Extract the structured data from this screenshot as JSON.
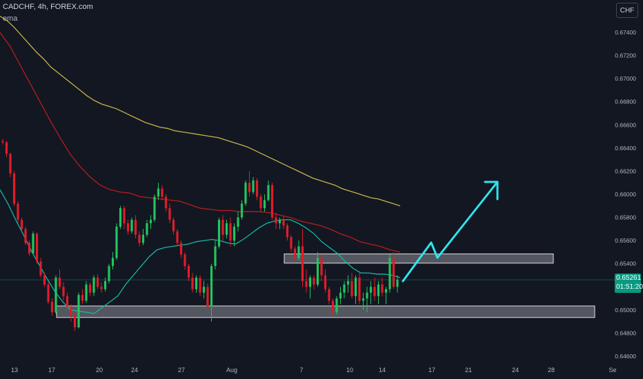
{
  "header": {
    "symbol": "CADCHF, 4h, FOREX.com",
    "indicator": "ema"
  },
  "currency_button": "CHF",
  "last_price": {
    "value": "0.65261",
    "countdown": "01:51:20"
  },
  "colors": {
    "background": "#131722",
    "bull": "#22c55e",
    "bear": "#e11d2a",
    "ema_fast": "#14b8a6",
    "ema_mid": "#b91c1c",
    "ema_slow": "#c9b44a",
    "projection": "#2ee6f0",
    "price_line": "#089981"
  },
  "chart_data": {
    "type": "candlestick",
    "y_axis_ticks": [
      "0.67400",
      "0.67200",
      "0.67000",
      "0.66800",
      "0.66600",
      "0.66400",
      "0.66200",
      "0.66000",
      "0.65800",
      "0.65600",
      "0.65400",
      "0.65000",
      "0.64800",
      "0.64600"
    ],
    "x_axis_ticks": [
      "13",
      "17",
      "20",
      "24",
      "27",
      "Aug",
      "7",
      "10",
      "14",
      "17",
      "21",
      "24",
      "28",
      "Se"
    ],
    "ylim": [
      0.6455,
      0.6755
    ],
    "last_price": 0.65261,
    "zones": [
      {
        "from_bar": 10,
        "to_end": true,
        "low": 0.64935,
        "high": 0.65035
      },
      {
        "from_bar": 80,
        "to_end": true,
        "low": 0.65405,
        "high": 0.65485
      }
    ],
    "ema_fast": [
      0.6604,
      0.6592,
      0.6578,
      0.6565,
      0.6551,
      0.6539,
      0.6527,
      0.6516,
      0.6507,
      0.65,
      0.6499,
      0.6498,
      0.6497,
      0.6502,
      0.6507,
      0.6512,
      0.6522,
      0.653,
      0.6538,
      0.6546,
      0.6552,
      0.6554,
      0.6555,
      0.6556,
      0.6557,
      0.6559,
      0.656,
      0.6561,
      0.656,
      0.6558,
      0.6557,
      0.6561,
      0.6566,
      0.6571,
      0.6575,
      0.6577,
      0.6578,
      0.6578,
      0.6575,
      0.6571,
      0.6566,
      0.6559,
      0.6554,
      0.6549,
      0.6542,
      0.6536,
      0.6532,
      0.6532,
      0.6531,
      0.6531,
      0.653,
      0.6528
    ],
    "ema_mid": [
      0.674,
      0.6728,
      0.6712,
      0.6696,
      0.668,
      0.6664,
      0.6649,
      0.6635,
      0.6624,
      0.6615,
      0.6608,
      0.6604,
      0.6602,
      0.6601,
      0.6598,
      0.6597,
      0.6596,
      0.6595,
      0.6594,
      0.6591,
      0.6588,
      0.6587,
      0.6586,
      0.6586,
      0.6585,
      0.6585,
      0.6585,
      0.6584,
      0.6582,
      0.658,
      0.6577,
      0.6575,
      0.6573,
      0.657,
      0.6566,
      0.6563,
      0.6559,
      0.6557,
      0.6555,
      0.6552,
      0.655
    ],
    "ema_slow": [
      0.6754,
      0.675,
      0.6744,
      0.6737,
      0.673,
      0.6723,
      0.6717,
      0.671,
      0.6705,
      0.67,
      0.6695,
      0.669,
      0.6685,
      0.6681,
      0.6678,
      0.6676,
      0.6674,
      0.6671,
      0.6668,
      0.6665,
      0.6662,
      0.666,
      0.6658,
      0.6657,
      0.6655,
      0.6654,
      0.6653,
      0.6652,
      0.6651,
      0.665,
      0.6649,
      0.6647,
      0.6645,
      0.6643,
      0.6641,
      0.6638,
      0.6635,
      0.6632,
      0.6629,
      0.6626,
      0.6623,
      0.662,
      0.6617,
      0.6614,
      0.6612,
      0.661,
      0.6608,
      0.6605,
      0.6603,
      0.6601,
      0.6599,
      0.6597,
      0.6596,
      0.6594,
      0.6592,
      0.659
    ],
    "candles": [
      [
        0.6646,
        0.6648,
        0.6643,
        0.6645
      ],
      [
        0.6645,
        0.6646,
        0.6632,
        0.6635
      ],
      [
        0.6635,
        0.6636,
        0.6615,
        0.6618
      ],
      [
        0.6618,
        0.662,
        0.659,
        0.6592
      ],
      [
        0.6592,
        0.6594,
        0.6575,
        0.6578
      ],
      [
        0.6578,
        0.658,
        0.6568,
        0.657
      ],
      [
        0.657,
        0.6572,
        0.6556,
        0.6558
      ],
      [
        0.6558,
        0.656,
        0.6547,
        0.6549
      ],
      [
        0.6549,
        0.6568,
        0.6548,
        0.6566
      ],
      [
        0.6566,
        0.6567,
        0.654,
        0.6542
      ],
      [
        0.6542,
        0.6545,
        0.6528,
        0.653
      ],
      [
        0.653,
        0.6532,
        0.652,
        0.6522
      ],
      [
        0.6522,
        0.6524,
        0.6505,
        0.6507
      ],
      [
        0.6507,
        0.651,
        0.6495,
        0.6498
      ],
      [
        0.6498,
        0.653,
        0.6497,
        0.6528
      ],
      [
        0.6528,
        0.6535,
        0.6518,
        0.652
      ],
      [
        0.652,
        0.6524,
        0.6508,
        0.6512
      ],
      [
        0.6512,
        0.6515,
        0.65,
        0.6503
      ],
      [
        0.6503,
        0.6505,
        0.649,
        0.6495
      ],
      [
        0.6495,
        0.6498,
        0.6482,
        0.6485
      ],
      [
        0.6485,
        0.6515,
        0.6484,
        0.6513
      ],
      [
        0.6513,
        0.6518,
        0.6505,
        0.6508
      ],
      [
        0.6508,
        0.6525,
        0.6506,
        0.6522
      ],
      [
        0.6522,
        0.6524,
        0.6512,
        0.6515
      ],
      [
        0.6515,
        0.653,
        0.6512,
        0.6528
      ],
      [
        0.6528,
        0.6531,
        0.6518,
        0.652
      ],
      [
        0.652,
        0.6524,
        0.6515,
        0.6518
      ],
      [
        0.6518,
        0.6528,
        0.6516,
        0.6525
      ],
      [
        0.6525,
        0.654,
        0.6523,
        0.6538
      ],
      [
        0.6538,
        0.655,
        0.6535,
        0.6545
      ],
      [
        0.6545,
        0.6575,
        0.6543,
        0.6572
      ],
      [
        0.6572,
        0.659,
        0.657,
        0.6588
      ],
      [
        0.6588,
        0.659,
        0.657,
        0.6575
      ],
      [
        0.6575,
        0.6578,
        0.6565,
        0.6568
      ],
      [
        0.6568,
        0.658,
        0.6566,
        0.6578
      ],
      [
        0.6578,
        0.6582,
        0.6562,
        0.6565
      ],
      [
        0.6565,
        0.6568,
        0.6555,
        0.6558
      ],
      [
        0.6558,
        0.657,
        0.6556,
        0.6565
      ],
      [
        0.6565,
        0.6578,
        0.6563,
        0.6575
      ],
      [
        0.6575,
        0.6582,
        0.657,
        0.6578
      ],
      [
        0.6578,
        0.66,
        0.6576,
        0.6598
      ],
      [
        0.6598,
        0.661,
        0.6595,
        0.6605
      ],
      [
        0.6605,
        0.6608,
        0.6595,
        0.6598
      ],
      [
        0.6598,
        0.66,
        0.6585,
        0.6588
      ],
      [
        0.6588,
        0.6592,
        0.6575,
        0.6578
      ],
      [
        0.6578,
        0.658,
        0.6565,
        0.6568
      ],
      [
        0.6568,
        0.657,
        0.6555,
        0.6558
      ],
      [
        0.6558,
        0.656,
        0.6545,
        0.6548
      ],
      [
        0.6548,
        0.655,
        0.6535,
        0.6538
      ],
      [
        0.6538,
        0.654,
        0.6525,
        0.6528
      ],
      [
        0.6528,
        0.6532,
        0.6515,
        0.6518
      ],
      [
        0.6518,
        0.653,
        0.6515,
        0.6528
      ],
      [
        0.6528,
        0.653,
        0.6512,
        0.6515
      ],
      [
        0.6515,
        0.6525,
        0.651,
        0.652
      ],
      [
        0.652,
        0.6523,
        0.65,
        0.6503
      ],
      [
        0.6503,
        0.654,
        0.649,
        0.6538
      ],
      [
        0.6538,
        0.656,
        0.6535,
        0.6555
      ],
      [
        0.6555,
        0.658,
        0.6553,
        0.6578
      ],
      [
        0.6578,
        0.6582,
        0.656,
        0.6565
      ],
      [
        0.6565,
        0.6578,
        0.6562,
        0.6575
      ],
      [
        0.6575,
        0.658,
        0.6555,
        0.656
      ],
      [
        0.656,
        0.6575,
        0.6555,
        0.6572
      ],
      [
        0.6572,
        0.6585,
        0.6568,
        0.658
      ],
      [
        0.658,
        0.6595,
        0.6578,
        0.6592
      ],
      [
        0.6592,
        0.6612,
        0.659,
        0.661
      ],
      [
        0.661,
        0.662,
        0.6598,
        0.6602
      ],
      [
        0.6602,
        0.6615,
        0.66,
        0.6612
      ],
      [
        0.6612,
        0.6614,
        0.6595,
        0.6598
      ],
      [
        0.6598,
        0.66,
        0.6585,
        0.6588
      ],
      [
        0.6588,
        0.66,
        0.6585,
        0.6595
      ],
      [
        0.6595,
        0.6612,
        0.6594,
        0.6608
      ],
      [
        0.6608,
        0.661,
        0.6578,
        0.658
      ],
      [
        0.658,
        0.6584,
        0.657,
        0.6575
      ],
      [
        0.6575,
        0.658,
        0.657,
        0.6578
      ],
      [
        0.6578,
        0.6581,
        0.657,
        0.6573
      ],
      [
        0.6573,
        0.6575,
        0.656,
        0.6563
      ],
      [
        0.6563,
        0.6565,
        0.655,
        0.6553
      ],
      [
        0.6553,
        0.6555,
        0.6542,
        0.6545
      ],
      [
        0.6545,
        0.656,
        0.6543,
        0.6555
      ],
      [
        0.6555,
        0.657,
        0.652,
        0.6525
      ],
      [
        0.6525,
        0.6535,
        0.6515,
        0.652
      ],
      [
        0.652,
        0.653,
        0.651,
        0.6528
      ],
      [
        0.6528,
        0.653,
        0.6518,
        0.6522
      ],
      [
        0.6522,
        0.655,
        0.652,
        0.6545
      ],
      [
        0.6545,
        0.6548,
        0.6525,
        0.653
      ],
      [
        0.653,
        0.6535,
        0.6515,
        0.6518
      ],
      [
        0.6518,
        0.652,
        0.6505,
        0.6508
      ],
      [
        0.6508,
        0.651,
        0.6495,
        0.6498
      ],
      [
        0.6498,
        0.6512,
        0.6496,
        0.651
      ],
      [
        0.651,
        0.652,
        0.6505,
        0.6515
      ],
      [
        0.6515,
        0.6525,
        0.651,
        0.6522
      ],
      [
        0.6522,
        0.653,
        0.6515,
        0.6525
      ],
      [
        0.6525,
        0.6532,
        0.651,
        0.6512
      ],
      [
        0.6512,
        0.653,
        0.6505,
        0.6528
      ],
      [
        0.6528,
        0.6532,
        0.6505,
        0.6508
      ],
      [
        0.6508,
        0.6515,
        0.65,
        0.651
      ],
      [
        0.651,
        0.652,
        0.6498,
        0.6515
      ],
      [
        0.6515,
        0.6525,
        0.6505,
        0.652
      ],
      [
        0.652,
        0.6528,
        0.6508,
        0.6512
      ],
      [
        0.6512,
        0.6525,
        0.6505,
        0.6522
      ],
      [
        0.6522,
        0.6528,
        0.6512,
        0.6515
      ],
      [
        0.6515,
        0.652,
        0.6505,
        0.6518
      ],
      [
        0.6518,
        0.6548,
        0.6515,
        0.6545
      ],
      [
        0.6545,
        0.655,
        0.6518,
        0.652
      ],
      [
        0.652,
        0.653,
        0.6515,
        0.6526
      ]
    ],
    "projection_path": [
      [
        0.6526,
        "last"
      ],
      [
        0.6556,
        "+10"
      ],
      [
        0.6543,
        "+12"
      ],
      [
        0.6611,
        "+38"
      ]
    ]
  }
}
